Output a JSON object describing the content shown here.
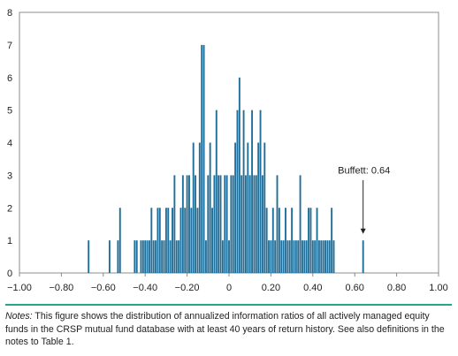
{
  "chart_data": {
    "type": "bar",
    "xlim": [
      -1.0,
      1.0
    ],
    "ylim": [
      0,
      8
    ],
    "bin_width": 0.01,
    "x_ticks": [
      -1.0,
      -0.8,
      -0.6,
      -0.4,
      -0.2,
      0.0,
      0.2,
      0.4,
      0.6,
      0.8,
      1.0
    ],
    "x_tick_labels": [
      "−1.00",
      "−0.80",
      "−0.60",
      "−0.40",
      "−0.20",
      "0",
      "0.20",
      "0.40",
      "0.60",
      "0.80",
      "1.00"
    ],
    "y_ticks": [
      0,
      1,
      2,
      3,
      4,
      5,
      6,
      7,
      8
    ],
    "y_tick_labels": [
      "0",
      "1",
      "2",
      "3",
      "4",
      "5",
      "6",
      "7",
      "8"
    ],
    "grid": false,
    "bar_color": "#1f6f9a",
    "axis_color": "#888888",
    "x": [
      -0.67,
      -0.57,
      -0.53,
      -0.52,
      -0.45,
      -0.44,
      -0.42,
      -0.41,
      -0.4,
      -0.39,
      -0.38,
      -0.37,
      -0.36,
      -0.35,
      -0.34,
      -0.33,
      -0.32,
      -0.31,
      -0.3,
      -0.29,
      -0.28,
      -0.27,
      -0.26,
      -0.25,
      -0.24,
      -0.23,
      -0.22,
      -0.21,
      -0.2,
      -0.19,
      -0.18,
      -0.17,
      -0.16,
      -0.15,
      -0.14,
      -0.13,
      -0.12,
      -0.11,
      -0.1,
      -0.09,
      -0.08,
      -0.07,
      -0.06,
      -0.05,
      -0.04,
      -0.03,
      -0.02,
      -0.01,
      0.0,
      0.01,
      0.02,
      0.03,
      0.04,
      0.05,
      0.06,
      0.07,
      0.08,
      0.09,
      0.1,
      0.11,
      0.12,
      0.13,
      0.14,
      0.15,
      0.16,
      0.17,
      0.18,
      0.19,
      0.2,
      0.21,
      0.22,
      0.23,
      0.24,
      0.25,
      0.26,
      0.27,
      0.28,
      0.29,
      0.3,
      0.31,
      0.32,
      0.33,
      0.34,
      0.35,
      0.36,
      0.37,
      0.38,
      0.39,
      0.4,
      0.41,
      0.42,
      0.43,
      0.44,
      0.45,
      0.46,
      0.47,
      0.48,
      0.49,
      0.5,
      0.64
    ],
    "values": [
      1,
      1,
      1,
      2,
      1,
      1,
      1,
      1,
      1,
      1,
      1,
      2,
      1,
      1,
      2,
      2,
      1,
      1,
      2,
      2,
      1,
      2,
      3,
      1,
      1,
      2,
      3,
      2,
      3,
      3,
      2,
      4,
      3,
      2,
      4,
      7,
      7,
      1,
      3,
      4,
      2,
      3,
      5,
      3,
      3,
      1,
      3,
      3,
      1,
      3,
      3,
      4,
      5,
      6,
      3,
      5,
      3,
      4,
      3,
      5,
      3,
      3,
      4,
      5,
      3,
      4,
      2,
      1,
      1,
      2,
      1,
      3,
      2,
      1,
      1,
      2,
      1,
      1,
      2,
      1,
      1,
      1,
      3,
      1,
      1,
      1,
      2,
      2,
      1,
      1,
      2,
      1,
      1,
      1,
      1,
      1,
      1,
      2,
      1,
      1
    ],
    "annotation": {
      "text": "Buffett: 0.64",
      "x": 0.64
    }
  },
  "notes": {
    "title": "Notes:",
    "text": " This figure shows the distribution of annualized information ratios of all actively managed equity funds in the CRSP mutual fund database with at least 40 years of return history. See also definitions in the notes to Table 1."
  }
}
